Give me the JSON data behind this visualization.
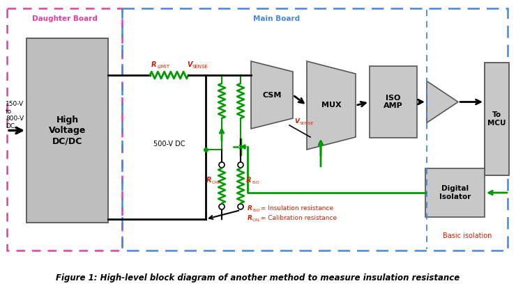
{
  "fig_width": 7.4,
  "fig_height": 4.24,
  "dpi": 100,
  "bg_color": "#ffffff",
  "caption": "Figure 1: High-level block diagram of another method to measure insulation resistance",
  "daughter_board_label": "Daughter Board",
  "main_board_label": "Main Board",
  "basic_isolation_label": "Basic isolation",
  "hv_block_label": "High\nVoltage\nDC/DC",
  "csm_label": "CSM",
  "mux_label": "MUX",
  "iso_amp_label": "ISO\nAMP",
  "to_mcu_label": "To\nMCU",
  "digital_isolator_label": "Digital\nIsolator",
  "r_limit_label": "R",
  "r_limit_sub": "LIMIT",
  "v_sense_label": "V",
  "v_sense_sub": "SENSE",
  "v_sense2_label": "V",
  "v_sense2_sub": "SENSE",
  "v_dc_label": "500-V DC",
  "r_iso_label": "R",
  "r_iso_sub": "ISO",
  "r_cal_label": "R",
  "r_cal_sub": "CAL",
  "input_label": "150-V\nto\n800-V\nDC",
  "legend1_r": "R",
  "legend1_sub": "ISO",
  "legend1_rest": " = Insulation resistance",
  "legend2_r": "R",
  "legend2_sub": "CAL",
  "legend2_rest": " = Calibration resistance",
  "pink_border": "#E040A0",
  "blue_border": "#4488DD",
  "gray_fill": "#BEBEBE",
  "light_gray": "#C8C8C8",
  "green_line": "#009900",
  "black_line": "#000000",
  "red_text": "#CC2200",
  "blue_text": "#4488DD",
  "pink_text": "#E040A0"
}
